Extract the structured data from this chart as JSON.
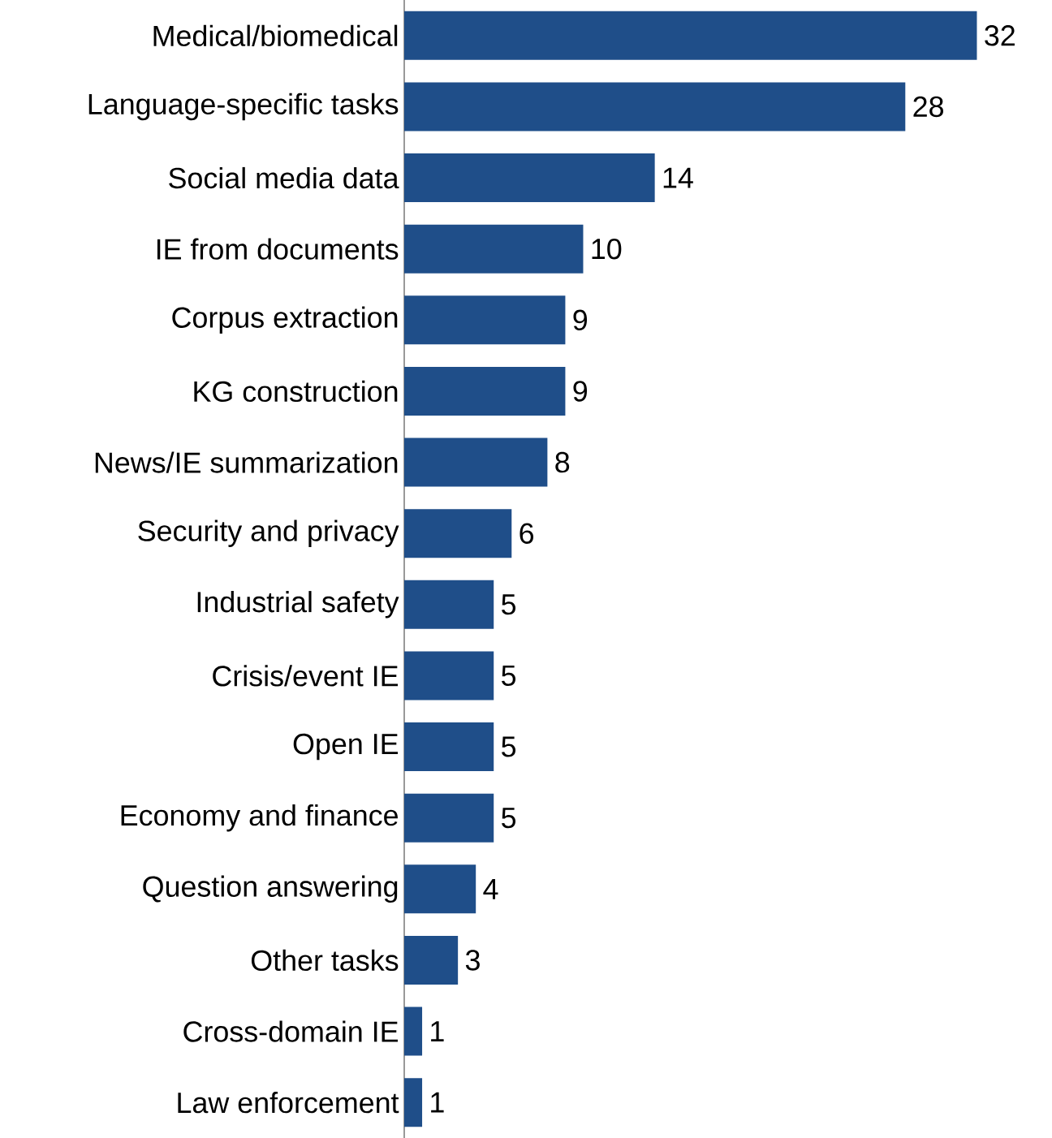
{
  "chart_data": {
    "type": "bar",
    "orientation": "horizontal",
    "color": "#1f4e89",
    "data_labels": true,
    "categories": [
      "Medical/biomedical",
      "Language-specific tasks",
      "Social media data",
      "IE from documents",
      "Corpus extraction",
      "KG construction",
      "News/IE summarization",
      "Security and privacy",
      "Industrial safety",
      "Crisis/event IE",
      "Open IE",
      "Economy and finance",
      "Question answering",
      "Other tasks",
      "Cross-domain IE",
      "Law enforcement"
    ],
    "values": [
      32,
      28,
      14,
      10,
      9,
      9,
      8,
      6,
      5,
      5,
      5,
      5,
      4,
      3,
      1,
      1
    ]
  }
}
